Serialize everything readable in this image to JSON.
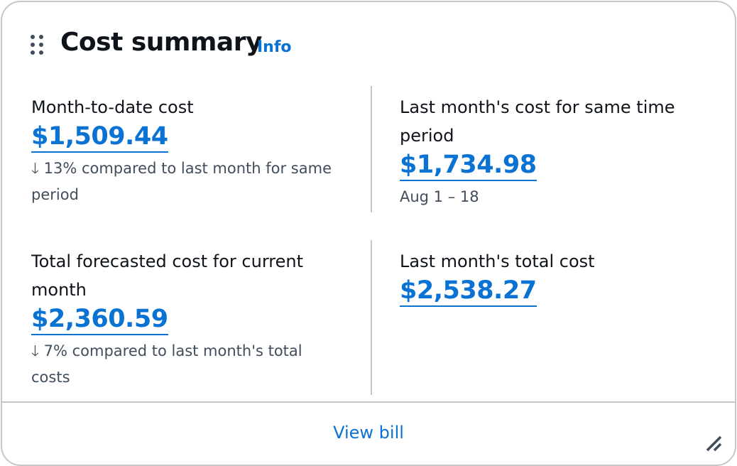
{
  "header": {
    "title": "Cost summary",
    "info_label": "Info",
    "drag_icon": "drag-handle-icon"
  },
  "metrics": [
    {
      "label": "Month-to-date cost",
      "value": "$1,509.44",
      "note": "13% compared to last month for same period",
      "trend": "down"
    },
    {
      "label": "Last month's cost for same time period",
      "value": "$1,734.98",
      "note": "Aug 1 – 18"
    },
    {
      "label": "Total forecasted cost for current month",
      "value": "$2,360.59",
      "note": "7% compared to last month's total costs",
      "trend": "down"
    },
    {
      "label": "Last month's total cost",
      "value": "$2,538.27"
    }
  ],
  "footer": {
    "view_bill_label": "View bill",
    "resize_icon": "resize-handle-icon"
  },
  "colors": {
    "link": "#0972d3",
    "text": "#0f141a",
    "secondary": "#414d5c",
    "border": "#c6c6cd"
  }
}
